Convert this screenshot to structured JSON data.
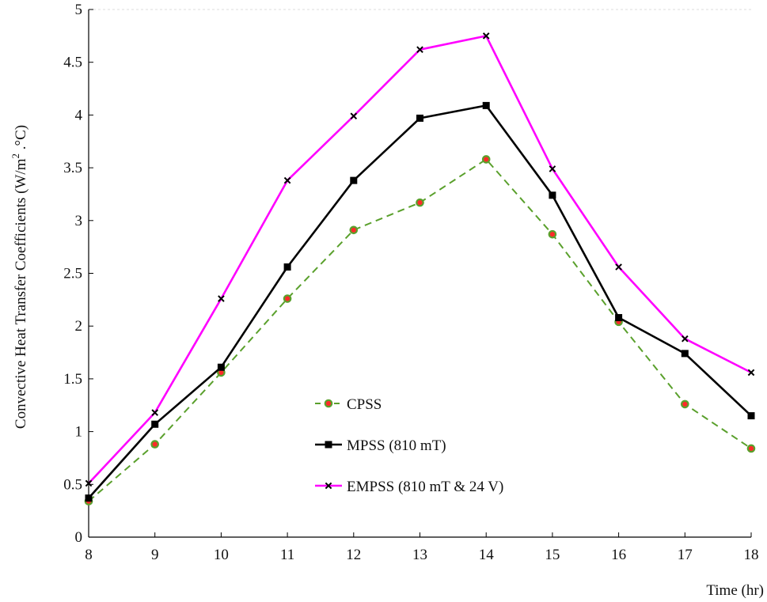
{
  "chart_data": {
    "type": "line",
    "title": "",
    "xlabel": "Time (hr)",
    "ylabel_parts": {
      "before": "Convective Heat Transfer Coefficients (W/m",
      "sup": "2",
      "after": " .°C)"
    },
    "x": [
      8,
      9,
      10,
      11,
      12,
      13,
      14,
      15,
      16,
      17,
      18
    ],
    "xlim": [
      8,
      18
    ],
    "ylim": [
      0,
      5
    ],
    "xticks": [
      "8",
      "9",
      "10",
      "11",
      "12",
      "13",
      "14",
      "15",
      "16",
      "17",
      "18"
    ],
    "yticks": [
      "0",
      "0.5",
      "1",
      "1.5",
      "2",
      "2.5",
      "3",
      "3.5",
      "4",
      "4.5",
      "5"
    ],
    "legend_position": "lower-center",
    "series": [
      {
        "name": "CPSS",
        "color": "#5aa02c",
        "marker_color": "#ff2a2a",
        "line_style": "dashed",
        "marker": "circle",
        "values": [
          0.34,
          0.88,
          1.56,
          2.26,
          2.91,
          3.17,
          3.58,
          2.87,
          2.04,
          1.26,
          0.84
        ]
      },
      {
        "name": "MPSS (810 mT)",
        "color": "#000000",
        "line_style": "solid",
        "marker": "square",
        "values": [
          0.37,
          1.07,
          1.61,
          2.56,
          3.38,
          3.97,
          4.09,
          3.24,
          2.08,
          1.74,
          1.15
        ]
      },
      {
        "name": "EMPSS (810 mT & 24 V)",
        "color": "#ff00ff",
        "line_style": "solid",
        "marker": "x",
        "values": [
          0.51,
          1.18,
          2.26,
          3.38,
          3.99,
          4.62,
          4.75,
          3.49,
          2.56,
          1.88,
          1.56
        ]
      }
    ]
  }
}
